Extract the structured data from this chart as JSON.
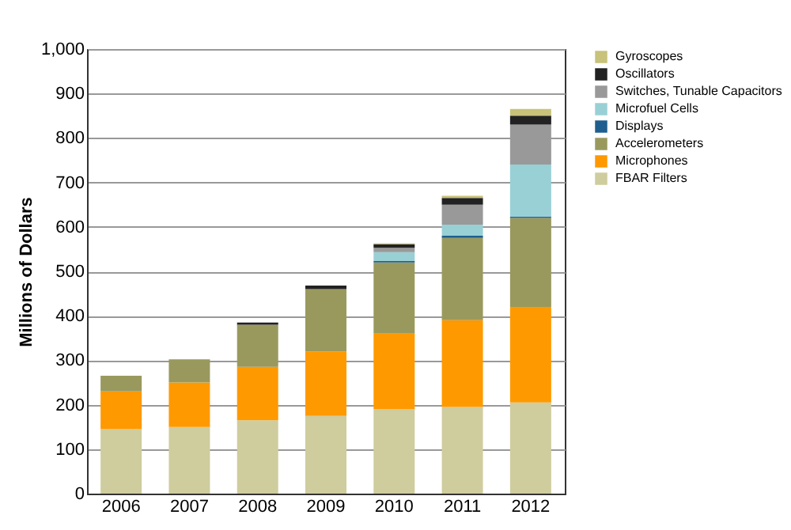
{
  "chart_data": {
    "type": "bar",
    "stacked": true,
    "ylabel": "Millions of Dollars",
    "categories": [
      "2006",
      "2007",
      "2008",
      "2009",
      "2010",
      "2011",
      "2012"
    ],
    "ylim": [
      0,
      1000
    ],
    "yticks": [
      0,
      100,
      200,
      300,
      400,
      500,
      600,
      700,
      800,
      {
        "value": 900,
        "label": "900"
      },
      {
        "value": 1000,
        "label": "1,000"
      }
    ],
    "grid": "y",
    "legend": "right",
    "series": [
      {
        "name": "FBAR Filters",
        "color": "#cfcc9e",
        "values": [
          145,
          150,
          165,
          175,
          190,
          195,
          205
        ]
      },
      {
        "name": "Microphones",
        "color": "#ff9900",
        "values": [
          85,
          100,
          120,
          145,
          170,
          195,
          215
        ]
      },
      {
        "name": "Accelerometers",
        "color": "#99995e",
        "values": [
          35,
          52,
          95,
          140,
          160,
          185,
          200
        ]
      },
      {
        "name": "Displays",
        "color": "#1f5f8f",
        "values": [
          0,
          0,
          0,
          0,
          3,
          5,
          3
        ]
      },
      {
        "name": "Microfuel Cells",
        "color": "#99d0d5",
        "values": [
          0,
          0,
          0,
          0,
          20,
          25,
          117
        ]
      },
      {
        "name": "Switches, Tunable Capacitors",
        "color": "#999999",
        "values": [
          0,
          0,
          0,
          0,
          10,
          45,
          90
        ]
      },
      {
        "name": "Oscillators",
        "color": "#222222",
        "values": [
          0,
          0,
          5,
          8,
          8,
          15,
          20
        ]
      },
      {
        "name": "Gyroscopes",
        "color": "#c8c27a",
        "values": [
          0,
          0,
          0,
          0,
          2,
          5,
          15
        ]
      }
    ]
  }
}
